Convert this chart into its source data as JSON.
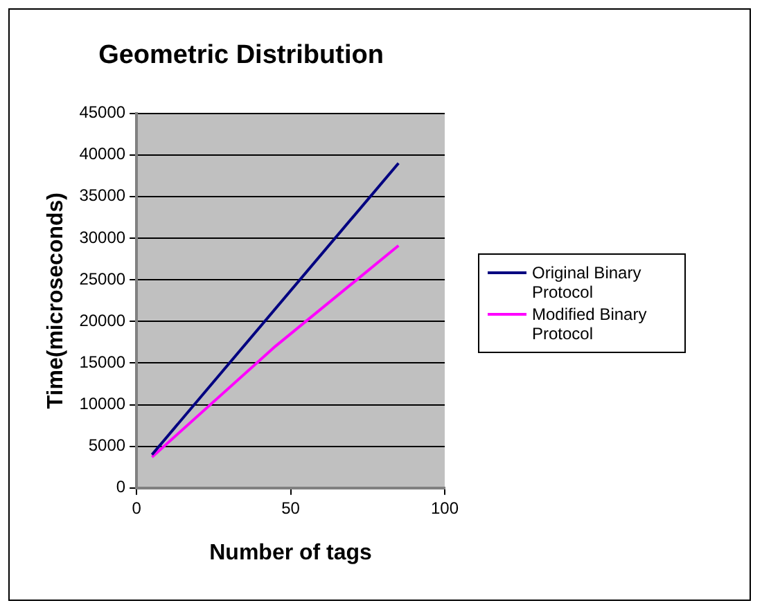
{
  "chart_data": {
    "type": "line",
    "title": "Geometric Distribution",
    "xlabel": "Number of tags",
    "ylabel": "Time(microseconds)",
    "xlim": [
      0,
      100
    ],
    "xticks": [
      0,
      50,
      100
    ],
    "ylim": [
      0,
      45000
    ],
    "yticks": [
      0,
      5000,
      10000,
      15000,
      20000,
      25000,
      30000,
      35000,
      40000,
      45000
    ],
    "grid": "y",
    "legend": "right",
    "marker": "none",
    "series": [
      {
        "name": "Original Binary Protocol",
        "color": "#000080",
        "x": [
          5,
          85
        ],
        "values": [
          4000,
          39000
        ]
      },
      {
        "name": "Modified Binary Protocol",
        "color": "#ff00ff",
        "x": [
          5,
          45,
          85
        ],
        "values": [
          3700,
          17000,
          29100
        ]
      }
    ]
  }
}
